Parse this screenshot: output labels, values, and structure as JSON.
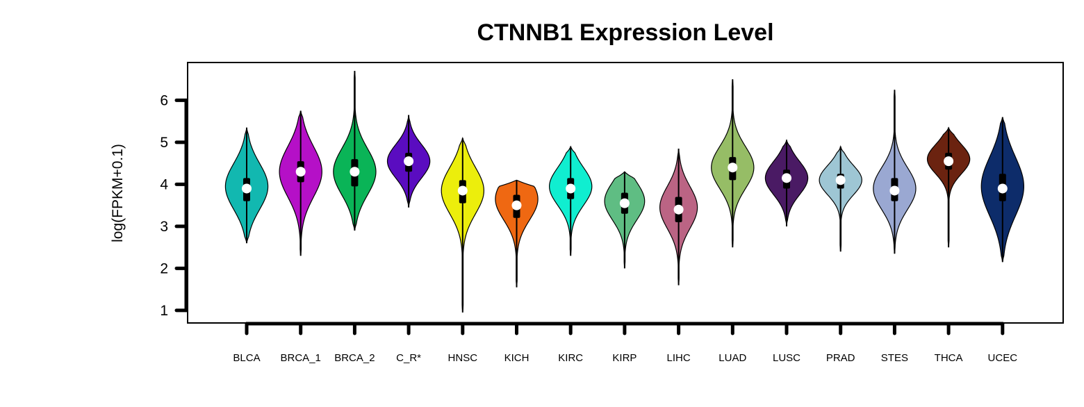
{
  "chart_data": {
    "type": "violin",
    "title": "CTNNB1 Expression Level",
    "xlabel": "",
    "ylabel": "log(FPKM+0.1)",
    "ylim": [
      0.7,
      6.9
    ],
    "yticks": [
      1,
      2,
      3,
      4,
      5,
      6
    ],
    "grid": false,
    "legend": "none",
    "categories": [
      "BLCA",
      "BRCA_1",
      "BRCA_2",
      "C_R*",
      "HNSC",
      "KICH",
      "KIRC",
      "KIRP",
      "LIHC",
      "LUAD",
      "LUSC",
      "PRAD",
      "STES",
      "THCA",
      "UCEC"
    ],
    "colors": [
      "#12b8b0",
      "#b510c7",
      "#0ab457",
      "#5a0cc0",
      "#ecee0c",
      "#ef6812",
      "#10eed0",
      "#5fbd83",
      "#bb6484",
      "#96bd66",
      "#4a1a64",
      "#9ec6d4",
      "#9aa8d2",
      "#6b2310",
      "#0d2c6a"
    ],
    "series": [
      {
        "name": "BLCA",
        "min": 2.6,
        "q1": 3.6,
        "median": 3.9,
        "q3": 4.15,
        "max": 5.35,
        "peak": 3.95,
        "spread": 0.55,
        "width": 0.85
      },
      {
        "name": "BRCA_1",
        "min": 2.3,
        "q1": 4.05,
        "median": 4.3,
        "q3": 4.55,
        "max": 5.75,
        "peak": 4.3,
        "spread": 0.6,
        "width": 0.85
      },
      {
        "name": "BRCA_2",
        "min": 2.9,
        "q1": 3.95,
        "median": 4.3,
        "q3": 4.6,
        "max": 6.7,
        "peak": 4.3,
        "spread": 0.55,
        "width": 0.85
      },
      {
        "name": "C_R*",
        "min": 3.45,
        "q1": 4.3,
        "median": 4.55,
        "q3": 4.75,
        "max": 5.65,
        "peak": 4.55,
        "spread": 0.4,
        "width": 0.85
      },
      {
        "name": "HNSC",
        "min": 0.95,
        "q1": 3.55,
        "median": 3.85,
        "q3": 4.1,
        "max": 5.1,
        "peak": 3.85,
        "spread": 0.55,
        "width": 0.85
      },
      {
        "name": "KICH",
        "min": 1.55,
        "q1": 3.2,
        "median": 3.5,
        "q3": 3.75,
        "max": 4.1,
        "peak": 3.65,
        "spread": 0.5,
        "width": 0.85
      },
      {
        "name": "KIRC",
        "min": 2.3,
        "q1": 3.65,
        "median": 3.9,
        "q3": 4.15,
        "max": 4.9,
        "peak": 3.95,
        "spread": 0.45,
        "width": 0.85
      },
      {
        "name": "KIRP",
        "min": 2.0,
        "q1": 3.3,
        "median": 3.55,
        "q3": 3.8,
        "max": 4.3,
        "peak": 3.6,
        "spread": 0.45,
        "width": 0.8
      },
      {
        "name": "LIHC",
        "min": 1.6,
        "q1": 3.1,
        "median": 3.4,
        "q3": 3.7,
        "max": 4.85,
        "peak": 3.45,
        "spread": 0.5,
        "width": 0.75
      },
      {
        "name": "LUAD",
        "min": 2.5,
        "q1": 4.1,
        "median": 4.4,
        "q3": 4.65,
        "max": 6.5,
        "peak": 4.4,
        "spread": 0.5,
        "width": 0.85
      },
      {
        "name": "LUSC",
        "min": 3.0,
        "q1": 3.9,
        "median": 4.15,
        "q3": 4.35,
        "max": 5.05,
        "peak": 4.15,
        "spread": 0.4,
        "width": 0.85
      },
      {
        "name": "PRAD",
        "min": 2.4,
        "q1": 3.9,
        "median": 4.1,
        "q3": 4.25,
        "max": 4.9,
        "peak": 4.1,
        "spread": 0.35,
        "width": 0.85
      },
      {
        "name": "STES",
        "min": 2.35,
        "q1": 3.6,
        "median": 3.85,
        "q3": 4.15,
        "max": 6.25,
        "peak": 3.9,
        "spread": 0.5,
        "width": 0.85
      },
      {
        "name": "THCA",
        "min": 2.5,
        "q1": 4.35,
        "median": 4.55,
        "q3": 4.75,
        "max": 5.35,
        "peak": 4.6,
        "spread": 0.35,
        "width": 0.85
      },
      {
        "name": "UCEC",
        "min": 2.15,
        "q1": 3.6,
        "median": 3.9,
        "q3": 4.25,
        "max": 5.6,
        "peak": 3.95,
        "spread": 0.7,
        "width": 0.85
      }
    ]
  }
}
